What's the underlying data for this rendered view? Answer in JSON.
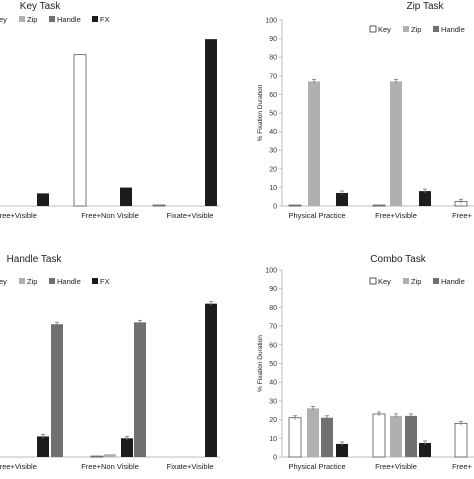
{
  "colors": {
    "Key": "#ffffff",
    "Zip": "#b0b0b0",
    "Handle": "#707070",
    "FX": "#1c1c1c",
    "axis": "#bdbdbd",
    "error": "#777777"
  },
  "chart_data": [
    {
      "type": "bar",
      "title": "Key Task",
      "ylabel": "",
      "ylim": [
        0,
        100
      ],
      "show_y_ticks": false,
      "categories": [
        "Free+Visible",
        "Free+Non Visible",
        "Fixate+Visible"
      ],
      "series": [
        {
          "name": "Key",
          "values": [
            78,
            78,
            0.5
          ]
        },
        {
          "name": "Zip",
          "values": [
            0,
            0,
            0
          ]
        },
        {
          "name": "Handle",
          "values": [
            0,
            0,
            0
          ]
        },
        {
          "name": "FX",
          "values": [
            6.5,
            9.5,
            86
          ]
        }
      ],
      "legend": [
        "Key",
        "Zip",
        "Handle",
        "FX"
      ]
    },
    {
      "type": "bar",
      "title": "Zip Task",
      "ylabel": "% Fixation Duration",
      "ylim": [
        0,
        100
      ],
      "yticks": [
        0,
        10,
        20,
        30,
        40,
        50,
        60,
        70,
        80,
        90,
        100
      ],
      "show_y_ticks": true,
      "categories": [
        "Physical Practice",
        "Free+Visible",
        "Free+"
      ],
      "series": [
        {
          "name": "Key",
          "values": [
            0.5,
            0.5,
            2.5
          ]
        },
        {
          "name": "Zip",
          "values": [
            67,
            67,
            0
          ]
        },
        {
          "name": "Handle",
          "values": [
            0,
            0,
            0
          ]
        },
        {
          "name": "FX",
          "values": [
            7,
            8,
            0
          ]
        }
      ],
      "legend": [
        "Key",
        "Zip",
        "Handle"
      ]
    },
    {
      "type": "bar",
      "title": "Handle Task",
      "ylabel": "",
      "ylim": [
        0,
        100
      ],
      "show_y_ticks": false,
      "categories": [
        "Free+Visible",
        "Free+Non Visible",
        "Fixate+Visible"
      ],
      "series": [
        {
          "name": "Key",
          "values": [
            0,
            0.5,
            0
          ]
        },
        {
          "name": "Zip",
          "values": [
            0,
            1.5,
            0
          ]
        },
        {
          "name": "Handle",
          "values": [
            71,
            72,
            0
          ]
        },
        {
          "name": "FX",
          "values": [
            11,
            10,
            82
          ]
        }
      ],
      "legend": [
        "Key",
        "Zip",
        "Handle",
        "FX"
      ]
    },
    {
      "type": "bar",
      "title": "Combo Task",
      "ylabel": "% Fixation Duration",
      "ylim": [
        0,
        100
      ],
      "yticks": [
        0,
        10,
        20,
        30,
        40,
        50,
        60,
        70,
        80,
        90,
        100
      ],
      "show_y_ticks": true,
      "categories": [
        "Physical Practice",
        "Free+Visible",
        "Free+"
      ],
      "series": [
        {
          "name": "Key",
          "values": [
            21,
            23,
            18
          ]
        },
        {
          "name": "Zip",
          "values": [
            26,
            22,
            0
          ]
        },
        {
          "name": "Handle",
          "values": [
            21,
            22,
            0
          ]
        },
        {
          "name": "FX",
          "values": [
            7,
            7.5,
            0
          ]
        }
      ],
      "legend": [
        "Key",
        "Zip",
        "Handle"
      ]
    }
  ]
}
